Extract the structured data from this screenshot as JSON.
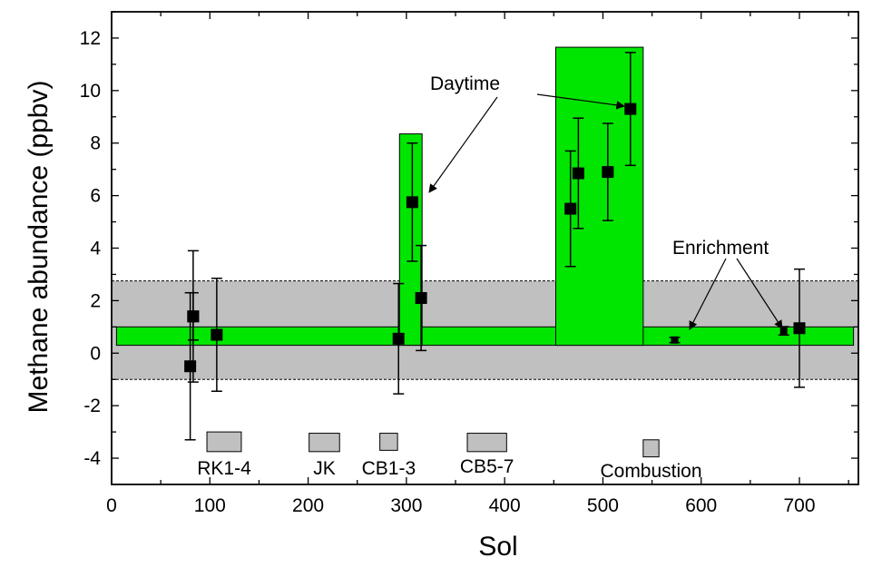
{
  "chart_data": {
    "type": "scatter",
    "xlabel": "Sol",
    "ylabel": "Methane abundance (ppbv)",
    "xlim": [
      0,
      760
    ],
    "ylim": [
      -5,
      13
    ],
    "xticks": [
      0,
      100,
      200,
      300,
      400,
      500,
      600,
      700
    ],
    "yticks": [
      -4,
      -2,
      0,
      2,
      4,
      6,
      8,
      10,
      12
    ],
    "grid": false,
    "points": [
      {
        "x": 80,
        "y": -0.5,
        "err": 2.8
      },
      {
        "x": 83,
        "y": 1.4,
        "err": 0.9
      },
      {
        "x": 83,
        "y": 1.4,
        "err": 2.5
      },
      {
        "x": 107,
        "y": 0.7,
        "err": 2.15
      },
      {
        "x": 292,
        "y": 0.55,
        "err": 2.1
      },
      {
        "x": 306,
        "y": 5.75,
        "err": 2.25
      },
      {
        "x": 315,
        "y": 2.1,
        "err": 2.0
      },
      {
        "x": 467,
        "y": 5.5,
        "err": 2.2
      },
      {
        "x": 475,
        "y": 6.85,
        "err": 2.1
      },
      {
        "x": 505,
        "y": 6.9,
        "err": 1.85
      },
      {
        "x": 528,
        "y": 9.3,
        "err": 2.15
      },
      {
        "x": 573,
        "y": 0.5,
        "err": 0.1
      },
      {
        "x": 684,
        "y": 0.85,
        "err": 0.16
      },
      {
        "x": 700,
        "y": 0.95,
        "err": 2.25
      }
    ],
    "bands": {
      "grey": {
        "x": [
          0,
          760
        ],
        "y": [
          -1.0,
          2.75
        ],
        "color": "#c0c0c0"
      },
      "green_baseline": {
        "x": [
          5,
          755
        ],
        "y": [
          0.3,
          1.0
        ],
        "color": "#00e600"
      },
      "green_spikes": [
        {
          "x": [
            293,
            316
          ],
          "y": [
            0.3,
            8.35
          ]
        },
        {
          "x": [
            452,
            541
          ],
          "y": [
            0.3,
            11.65
          ]
        }
      ]
    },
    "experiments": [
      {
        "label": "RK1-4",
        "x": [
          97,
          132
        ],
        "y": [
          -3.75,
          -3.0
        ]
      },
      {
        "label": "JK",
        "x": [
          201,
          232
        ],
        "y": [
          -3.75,
          -3.05
        ]
      },
      {
        "label": "CB1-3",
        "x": [
          273,
          291
        ],
        "y": [
          -3.7,
          -3.05
        ]
      },
      {
        "label": "CB5-7",
        "x": [
          362,
          402
        ],
        "y": [
          -3.75,
          -3.05
        ]
      },
      {
        "label": "Combustion",
        "x": [
          541,
          557
        ],
        "y": [
          -3.95,
          -3.3
        ]
      }
    ],
    "annotations": [
      {
        "text": "Daytime"
      },
      {
        "text": "Enrichment"
      }
    ]
  }
}
